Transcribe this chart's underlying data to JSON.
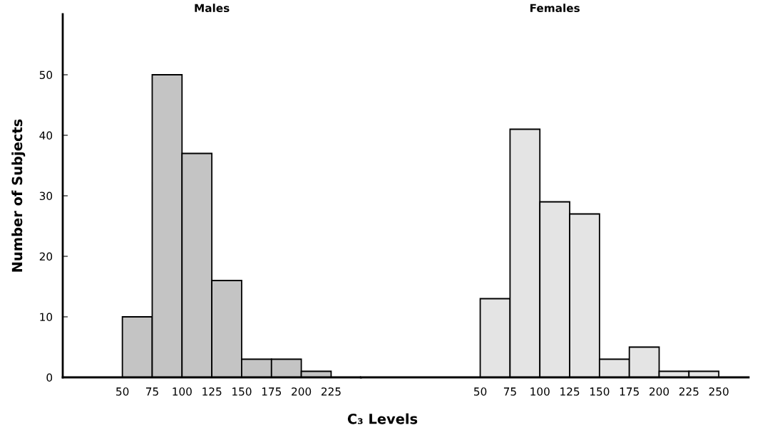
{
  "chart_data": [
    {
      "type": "histogram",
      "title": "Males",
      "xlabel": "C₃ Levels",
      "ylabel": "Number of Subjects",
      "bins": [
        50,
        75,
        100,
        125,
        150,
        175,
        200,
        225
      ],
      "values": [
        10,
        50,
        37,
        16,
        3,
        3,
        1
      ],
      "color": "#c4c4c4",
      "xlim": [
        0,
        250
      ],
      "xticks": [
        50,
        75,
        100,
        125,
        150,
        175,
        200,
        225
      ],
      "ylim": [
        0,
        60
      ],
      "yticks": [
        0,
        10,
        20,
        30,
        40,
        50
      ],
      "grid": false
    },
    {
      "type": "histogram",
      "title": "Females",
      "bins": [
        50,
        75,
        100,
        125,
        150,
        175,
        200,
        225,
        250
      ],
      "values": [
        13,
        41,
        29,
        27,
        3,
        5,
        1,
        1
      ],
      "color": "#e4e4e4",
      "xlim": [
        -50,
        275
      ],
      "xticks": [
        50,
        75,
        100,
        125,
        150,
        175,
        200,
        225,
        250
      ],
      "ylim": [
        0,
        60
      ],
      "tick_labels": "x",
      "grid": false
    }
  ]
}
